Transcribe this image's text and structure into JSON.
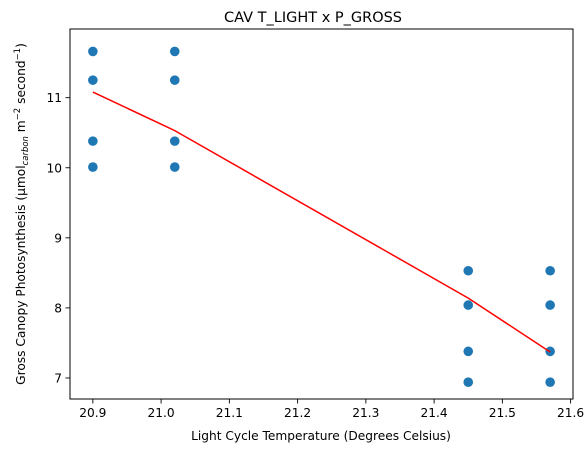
{
  "chart_data": {
    "type": "scatter",
    "title": "CAV T_LIGHT x P_GROSS",
    "xlabel": "Light Cycle Temperature (Degrees Celsius)",
    "ylabel": {
      "prefix": "Gross Canopy Photosynthesis (μmol",
      "subscript": "carbon",
      "middle": " m",
      "sup1": "−2",
      "middle2": " second",
      "sup2": "−1",
      "suffix": ")"
    },
    "xlim": [
      20.8665,
      21.6035
    ],
    "ylim": [
      6.7,
      11.98
    ],
    "xticks": [
      20.9,
      21.0,
      21.1,
      21.2,
      21.3,
      21.4,
      21.5,
      21.6
    ],
    "xtick_labels": [
      "20.9",
      "21.0",
      "21.1",
      "21.2",
      "21.3",
      "21.4",
      "21.5",
      "21.6"
    ],
    "yticks": [
      7,
      8,
      9,
      10,
      11
    ],
    "ytick_labels": [
      "7",
      "8",
      "9",
      "10",
      "11"
    ],
    "grid": false,
    "series": [
      {
        "kind": "scatter",
        "color": "#1f77b4",
        "points": [
          {
            "x": 20.9,
            "y": 11.66
          },
          {
            "x": 20.9,
            "y": 11.25
          },
          {
            "x": 20.9,
            "y": 10.38
          },
          {
            "x": 20.9,
            "y": 10.01
          },
          {
            "x": 21.02,
            "y": 11.66
          },
          {
            "x": 21.02,
            "y": 11.25
          },
          {
            "x": 21.02,
            "y": 10.38
          },
          {
            "x": 21.02,
            "y": 10.01
          },
          {
            "x": 21.45,
            "y": 8.53
          },
          {
            "x": 21.45,
            "y": 8.04
          },
          {
            "x": 21.45,
            "y": 7.38
          },
          {
            "x": 21.45,
            "y": 6.94
          },
          {
            "x": 21.57,
            "y": 8.53
          },
          {
            "x": 21.57,
            "y": 8.04
          },
          {
            "x": 21.57,
            "y": 7.38
          },
          {
            "x": 21.57,
            "y": 6.94
          }
        ]
      },
      {
        "kind": "line",
        "color": "#ff0000",
        "points": [
          {
            "x": 20.9,
            "y": 11.08
          },
          {
            "x": 21.02,
            "y": 10.53
          },
          {
            "x": 21.45,
            "y": 8.14
          },
          {
            "x": 21.57,
            "y": 7.37
          }
        ]
      }
    ]
  }
}
